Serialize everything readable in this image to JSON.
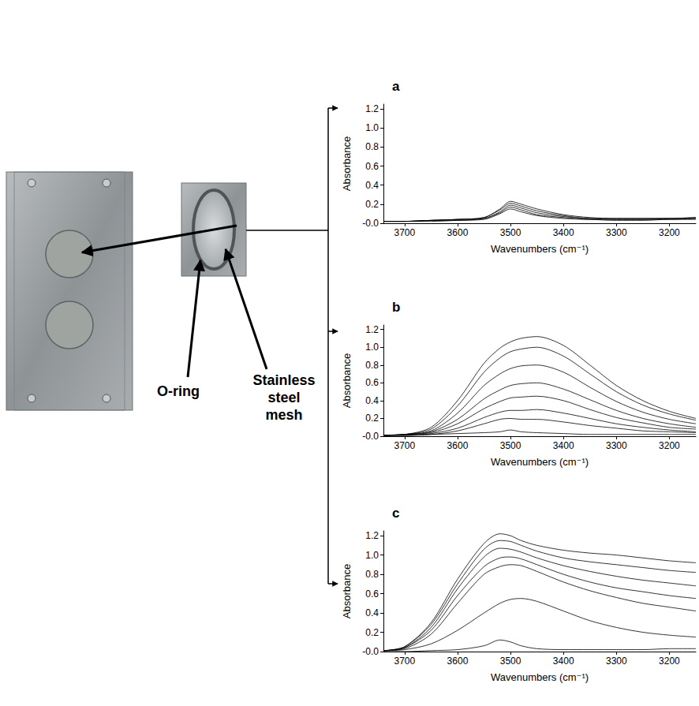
{
  "photo_labels": {
    "o_ring": "O-ring",
    "mesh": "Stainless steel mesh"
  },
  "chart_data": [
    {
      "type": "line",
      "title": "a",
      "xlabel": "Wavenumbers (cm⁻¹)",
      "ylabel": "Absorbance",
      "color": "#000000",
      "grid": false,
      "xlim": [
        3740,
        3150
      ],
      "xticks": [
        3700,
        3600,
        3500,
        3400,
        3300,
        3200
      ],
      "ylim": [
        0,
        1.25
      ],
      "yticks": [
        {
          "value": 0,
          "label": "-0.0"
        },
        0.2,
        0.4,
        0.6,
        0.8,
        {
          "value": 1,
          "label": "1.0"
        },
        1.2
      ],
      "x": [
        3740,
        3700,
        3650,
        3600,
        3550,
        3520,
        3500,
        3480,
        3450,
        3400,
        3350,
        3300,
        3250,
        3200,
        3150
      ],
      "series": [
        {
          "values": [
            0.02,
            0.02,
            0.03,
            0.04,
            0.06,
            0.15,
            0.23,
            0.2,
            0.15,
            0.09,
            0.06,
            0.05,
            0.05,
            0.05,
            0.06
          ]
        },
        {
          "values": [
            0.02,
            0.02,
            0.03,
            0.04,
            0.06,
            0.14,
            0.21,
            0.18,
            0.13,
            0.08,
            0.05,
            0.05,
            0.05,
            0.05,
            0.06
          ]
        },
        {
          "values": [
            0.02,
            0.02,
            0.03,
            0.04,
            0.05,
            0.12,
            0.19,
            0.16,
            0.11,
            0.07,
            0.05,
            0.04,
            0.04,
            0.05,
            0.05
          ]
        },
        {
          "values": [
            0.02,
            0.02,
            0.03,
            0.03,
            0.05,
            0.11,
            0.17,
            0.14,
            0.09,
            0.06,
            0.04,
            0.04,
            0.04,
            0.04,
            0.05
          ]
        },
        {
          "values": [
            0.02,
            0.02,
            0.02,
            0.03,
            0.04,
            0.1,
            0.15,
            0.12,
            0.08,
            0.05,
            0.04,
            0.03,
            0.03,
            0.04,
            0.04
          ]
        }
      ]
    },
    {
      "type": "line",
      "title": "b",
      "xlabel": "Wavenumbers (cm⁻¹)",
      "ylabel": "Absorbance",
      "color": "#000000",
      "grid": false,
      "xlim": [
        3740,
        3150
      ],
      "xticks": [
        3700,
        3600,
        3500,
        3400,
        3300,
        3200
      ],
      "ylim": [
        0,
        1.25
      ],
      "yticks": [
        {
          "value": 0,
          "label": "-0.0"
        },
        0.2,
        0.4,
        0.6,
        0.8,
        {
          "value": 1,
          "label": "1.0"
        },
        1.2
      ],
      "x": [
        3740,
        3700,
        3650,
        3600,
        3550,
        3520,
        3500,
        3480,
        3450,
        3400,
        3350,
        3300,
        3250,
        3200,
        3150
      ],
      "series": [
        {
          "values": [
            0.01,
            0.02,
            0.1,
            0.4,
            0.82,
            0.99,
            1.06,
            1.1,
            1.12,
            1.02,
            0.8,
            0.57,
            0.4,
            0.28,
            0.2
          ]
        },
        {
          "values": [
            0.01,
            0.02,
            0.08,
            0.34,
            0.72,
            0.88,
            0.95,
            0.98,
            1.0,
            0.9,
            0.7,
            0.5,
            0.35,
            0.25,
            0.18
          ]
        },
        {
          "values": [
            0.01,
            0.02,
            0.06,
            0.26,
            0.57,
            0.7,
            0.76,
            0.79,
            0.8,
            0.72,
            0.55,
            0.39,
            0.27,
            0.19,
            0.14
          ]
        },
        {
          "values": [
            0.01,
            0.02,
            0.05,
            0.19,
            0.42,
            0.52,
            0.57,
            0.59,
            0.6,
            0.53,
            0.41,
            0.29,
            0.2,
            0.14,
            0.1
          ]
        },
        {
          "values": [
            0.01,
            0.02,
            0.04,
            0.14,
            0.31,
            0.39,
            0.43,
            0.44,
            0.45,
            0.4,
            0.3,
            0.21,
            0.15,
            0.1,
            0.08
          ]
        },
        {
          "values": [
            0.01,
            0.01,
            0.03,
            0.09,
            0.21,
            0.27,
            0.29,
            0.29,
            0.3,
            0.26,
            0.2,
            0.14,
            0.1,
            0.07,
            0.05
          ]
        },
        {
          "values": [
            0.01,
            0.01,
            0.02,
            0.06,
            0.14,
            0.19,
            0.2,
            0.19,
            0.19,
            0.16,
            0.12,
            0.09,
            0.06,
            0.05,
            0.04
          ]
        },
        {
          "values": [
            0.01,
            0.01,
            0.02,
            0.03,
            0.04,
            0.05,
            0.07,
            0.05,
            0.04,
            0.03,
            0.02,
            0.02,
            0.02,
            0.02,
            0.02
          ]
        }
      ]
    },
    {
      "type": "line",
      "title": "c",
      "xlabel": "Wavenumbers (cm⁻¹)",
      "ylabel": "Absorbance",
      "color": "#000000",
      "grid": false,
      "xlim": [
        3740,
        3150
      ],
      "xticks": [
        3700,
        3600,
        3500,
        3400,
        3300,
        3200
      ],
      "ylim": [
        0,
        1.25
      ],
      "yticks": [
        {
          "value": 0,
          "label": "-0.0"
        },
        0.2,
        0.4,
        0.6,
        0.8,
        {
          "value": 1,
          "label": "1.0"
        },
        1.2
      ],
      "x": [
        3740,
        3700,
        3650,
        3600,
        3550,
        3520,
        3500,
        3480,
        3450,
        3400,
        3350,
        3300,
        3250,
        3200,
        3150
      ],
      "series": [
        {
          "values": [
            0.01,
            0.05,
            0.3,
            0.75,
            1.12,
            1.22,
            1.2,
            1.15,
            1.1,
            1.05,
            1.02,
            1.0,
            0.97,
            0.94,
            0.92
          ]
        },
        {
          "values": [
            0.01,
            0.05,
            0.28,
            0.7,
            1.06,
            1.15,
            1.14,
            1.1,
            1.04,
            0.97,
            0.93,
            0.9,
            0.87,
            0.84,
            0.82
          ]
        },
        {
          "values": [
            0.01,
            0.04,
            0.25,
            0.65,
            0.98,
            1.07,
            1.06,
            1.03,
            0.97,
            0.89,
            0.83,
            0.78,
            0.74,
            0.71,
            0.68
          ]
        },
        {
          "values": [
            0.01,
            0.04,
            0.22,
            0.58,
            0.88,
            0.97,
            0.98,
            0.96,
            0.9,
            0.8,
            0.72,
            0.66,
            0.62,
            0.58,
            0.55
          ]
        },
        {
          "values": [
            0.01,
            0.03,
            0.18,
            0.5,
            0.8,
            0.88,
            0.9,
            0.89,
            0.83,
            0.72,
            0.63,
            0.56,
            0.5,
            0.46,
            0.42
          ]
        },
        {
          "values": [
            0.01,
            0.02,
            0.08,
            0.22,
            0.4,
            0.5,
            0.54,
            0.55,
            0.52,
            0.42,
            0.32,
            0.25,
            0.2,
            0.17,
            0.15
          ]
        },
        {
          "values": [
            0.0,
            0.0,
            0.01,
            0.02,
            0.06,
            0.12,
            0.1,
            0.06,
            0.03,
            0.02,
            0.02,
            0.02,
            0.02,
            0.03,
            0.03
          ]
        }
      ]
    }
  ]
}
